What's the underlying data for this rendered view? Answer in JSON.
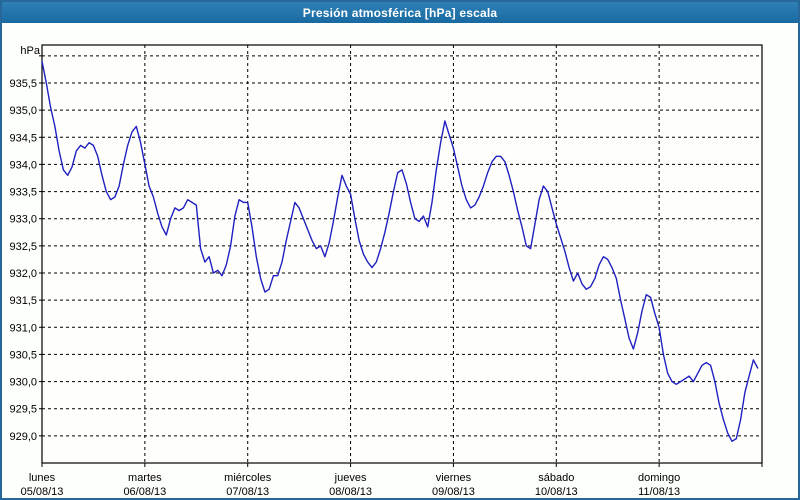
{
  "window": {
    "title": "Presión atmosférica [hPa] escala"
  },
  "colors": {
    "frame": "#26679c",
    "title_bar_top": "#2e80b5",
    "title_bar_bottom": "#1a6aa2",
    "title_text": "#ffffff",
    "background": "#fdfffa",
    "plot_background": "#fefefc",
    "plot_border": "#000000",
    "grid": "#000000",
    "axis_text": "#000000",
    "line": "#2020c0"
  },
  "chart_data": {
    "type": "line",
    "title": "Presión atmosférica [hPa] escala",
    "unit_label": "hPa",
    "ylabel": "hPa",
    "decimal_separator": ",",
    "grid": "dashed",
    "legend": "none",
    "ylim": [
      928.5,
      936.2
    ],
    "ytick_min": 929.0,
    "ytick_max": 936.0,
    "ytick_step": 0.5,
    "ytick_label_max": 935.5,
    "x_unit": "hours_from_monday_00:00",
    "xlim": [
      0,
      168
    ],
    "x_day_tick_step_hours": 24,
    "day_labels": [
      {
        "name": "lunes",
        "date": "05/08/13"
      },
      {
        "name": "martes",
        "date": "06/08/13"
      },
      {
        "name": "miércoles",
        "date": "07/08/13"
      },
      {
        "name": "jueves",
        "date": "08/08/13"
      },
      {
        "name": "viernes",
        "date": "09/08/13"
      },
      {
        "name": "sábado",
        "date": "10/08/13"
      },
      {
        "name": "domingo",
        "date": "11/08/13"
      }
    ],
    "series": [
      {
        "name": "Presión atmosférica",
        "color": "#2020c0",
        "start_hour": 0,
        "step_hours": 1,
        "values": [
          935.9,
          935.5,
          935.05,
          934.7,
          934.25,
          933.9,
          933.8,
          933.95,
          934.25,
          934.35,
          934.3,
          934.4,
          934.35,
          934.15,
          933.8,
          933.5,
          933.35,
          933.4,
          933.6,
          934.0,
          934.35,
          934.6,
          934.7,
          934.4,
          934.0,
          933.6,
          933.4,
          933.1,
          932.85,
          932.7,
          933.0,
          933.2,
          933.15,
          933.2,
          933.35,
          933.3,
          933.25,
          932.45,
          932.2,
          932.3,
          932.0,
          932.05,
          931.95,
          932.15,
          932.5,
          933.05,
          933.35,
          933.3,
          933.3,
          932.85,
          932.3,
          931.9,
          931.65,
          931.7,
          931.95,
          931.95,
          932.2,
          932.6,
          932.95,
          933.3,
          933.2,
          933.0,
          932.8,
          932.6,
          932.45,
          932.5,
          932.3,
          932.55,
          932.95,
          933.4,
          933.8,
          933.6,
          933.45,
          933.0,
          932.6,
          932.35,
          932.2,
          932.1,
          932.2,
          932.45,
          932.75,
          933.1,
          933.5,
          933.85,
          933.9,
          933.65,
          933.3,
          933.0,
          932.95,
          933.05,
          932.85,
          933.3,
          933.9,
          934.4,
          934.8,
          934.55,
          934.3,
          933.95,
          933.6,
          933.35,
          933.2,
          933.25,
          933.4,
          933.6,
          933.85,
          934.05,
          934.15,
          934.15,
          934.05,
          933.8,
          933.5,
          933.15,
          932.85,
          932.5,
          932.45,
          932.9,
          933.35,
          933.6,
          933.5,
          933.2,
          932.9,
          932.65,
          932.4,
          932.1,
          931.85,
          932.0,
          931.8,
          931.7,
          931.75,
          931.9,
          932.15,
          932.3,
          932.25,
          932.1,
          931.9,
          931.5,
          931.15,
          930.8,
          930.6,
          930.9,
          931.3,
          931.6,
          931.55,
          931.25,
          931.0,
          930.5,
          930.15,
          930.0,
          929.95,
          930.0,
          930.05,
          930.1,
          930.0,
          930.15,
          930.3,
          930.35,
          930.3,
          930.0,
          929.6,
          929.3,
          929.05,
          928.9,
          928.95,
          929.3,
          929.8,
          930.1,
          930.4,
          930.25
        ]
      }
    ]
  }
}
